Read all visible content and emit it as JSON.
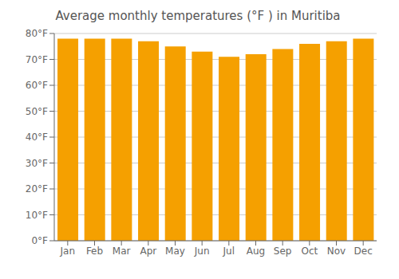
{
  "chart_data": {
    "type": "bar",
    "title": "Average monthly temperatures (°F ) in Muritiba",
    "categories": [
      "Jan",
      "Feb",
      "Mar",
      "Apr",
      "May",
      "Jun",
      "Jul",
      "Aug",
      "Sep",
      "Oct",
      "Nov",
      "Dec"
    ],
    "values": [
      78,
      78,
      78,
      77,
      75,
      73,
      71,
      72,
      74,
      76,
      77,
      78
    ],
    "color": "#F5A000",
    "ylim": [
      0,
      80
    ],
    "yticks": [
      {
        "value": 0,
        "label": "0°F"
      },
      {
        "value": 10,
        "label": "10°F"
      },
      {
        "value": 20,
        "label": "20°F"
      },
      {
        "value": 30,
        "label": "30°F"
      },
      {
        "value": 40,
        "label": "40°F"
      },
      {
        "value": 50,
        "label": "50°F"
      },
      {
        "value": 60,
        "label": "60°F"
      },
      {
        "value": 70,
        "label": "70°F"
      },
      {
        "value": 80,
        "label": "80°F"
      }
    ],
    "grid": true
  }
}
